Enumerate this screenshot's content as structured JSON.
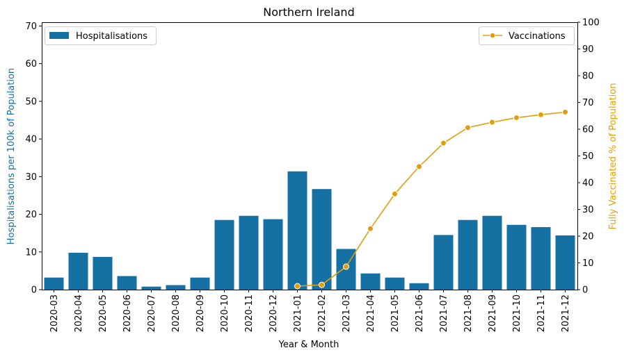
{
  "chart_data": {
    "type": "bar+line",
    "title": "Northern Ireland",
    "xlabel": "Year & Month",
    "ylabel_left": "Hospitalisations per 100k of Population",
    "ylabel_right": "Fully Vaccinated % of Population",
    "ylim_left": [
      0,
      71
    ],
    "ylim_right": [
      0,
      100
    ],
    "yticks_left": [
      0,
      10,
      20,
      30,
      40,
      50,
      60,
      70
    ],
    "yticks_right": [
      0,
      10,
      20,
      30,
      40,
      50,
      60,
      70,
      80,
      90,
      100
    ],
    "categories": [
      "2020-03",
      "2020-04",
      "2020-05",
      "2020-06",
      "2020-07",
      "2020-08",
      "2020-09",
      "2020-10",
      "2020-11",
      "2020-12",
      "2021-01",
      "2021-02",
      "2021-03",
      "2021-04",
      "2021-05",
      "2021-06",
      "2021-07",
      "2021-08",
      "2021-09",
      "2021-10",
      "2021-11",
      "2021-12"
    ],
    "series": [
      {
        "name": "Hospitalisations",
        "kind": "bar",
        "axis": "left",
        "color": "#1570a3",
        "values": [
          3.2,
          9.8,
          8.7,
          3.6,
          0.8,
          1.2,
          3.2,
          18.5,
          19.6,
          18.7,
          31.4,
          26.7,
          10.8,
          4.3,
          3.2,
          1.7,
          14.5,
          18.5,
          19.6,
          17.2,
          16.6,
          14.4
        ]
      },
      {
        "name": "Vaccinations",
        "kind": "line",
        "axis": "right",
        "color": "#e29e09",
        "values": [
          null,
          null,
          null,
          null,
          null,
          null,
          null,
          null,
          null,
          null,
          1.3,
          1.8,
          8.6,
          22.8,
          35.8,
          46.0,
          54.8,
          60.6,
          62.6,
          64.3,
          65.4,
          66.4
        ]
      }
    ],
    "legend": [
      {
        "label": "Hospitalisations",
        "position": "top-left"
      },
      {
        "label": "Vaccinations",
        "position": "top-right"
      }
    ],
    "grid": false
  }
}
